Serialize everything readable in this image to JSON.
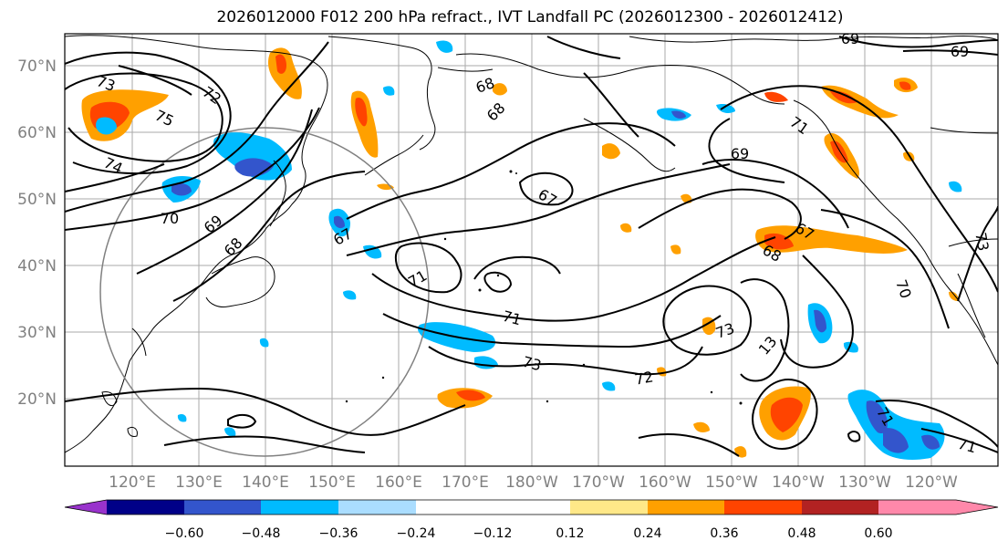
{
  "title": "2026012000 F012 200 hPa refract., IVT Landfall PC (2026012300 - 2026012412)",
  "map": {
    "lat_labels": [
      "70°N",
      "60°N",
      "50°N",
      "40°N",
      "30°N",
      "20°N"
    ],
    "lon_labels": [
      "120°E",
      "130°E",
      "140°E",
      "150°E",
      "160°E",
      "170°E",
      "180°W",
      "170°W",
      "160°W",
      "150°W",
      "140°W",
      "130°W",
      "120°W"
    ],
    "contour_labels": [
      "73",
      "72",
      "75",
      "74",
      "70",
      "69",
      "68",
      "67",
      "71",
      "68",
      "68",
      "67",
      "69",
      "71",
      "71",
      "73",
      "72",
      "73",
      "13",
      "67",
      "68",
      "70",
      "71",
      "71",
      "69",
      "69",
      "73"
    ]
  },
  "colorbar": {
    "colors": [
      "#9933cc",
      "#000088",
      "#3355cc",
      "#00bbff",
      "#aaddff",
      "#ffffff",
      "#ffe888",
      "#ffa000",
      "#ff4400",
      "#b22222",
      "#ff88aa"
    ],
    "ticks": [
      "−0.60",
      "−0.48",
      "−0.36",
      "−0.24",
      "−0.12",
      "0.12",
      "0.24",
      "0.36",
      "0.48",
      "0.60"
    ]
  }
}
